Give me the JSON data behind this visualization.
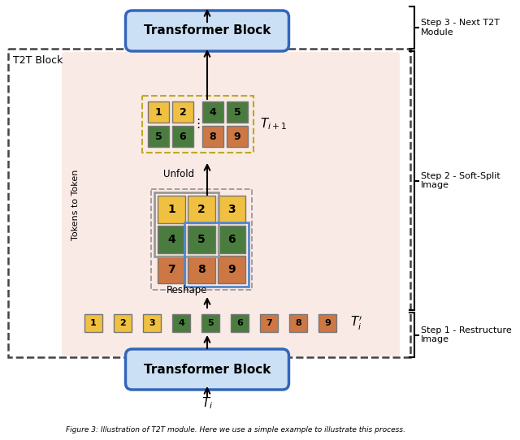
{
  "fig_width": 6.4,
  "fig_height": 5.42,
  "dpi": 100,
  "bg_color": "#ffffff",
  "pink_bg": "#faeae6",
  "yellow": "#f0c040",
  "green": "#4a7c3f",
  "orange": "#cc7744",
  "blue_box": "#5588cc",
  "gray_box": "#999999",
  "tb_fill": "#cce0f5",
  "tb_border": "#3366bb",
  "bottom_seq": [
    {
      "n": "1",
      "c": "#f0c040"
    },
    {
      "n": "2",
      "c": "#f0c040"
    },
    {
      "n": "3",
      "c": "#f0c040"
    },
    {
      "n": "4",
      "c": "#4a7c3f"
    },
    {
      "n": "5",
      "c": "#4a7c3f"
    },
    {
      "n": "6",
      "c": "#4a7c3f"
    },
    {
      "n": "7",
      "c": "#cc7744"
    },
    {
      "n": "8",
      "c": "#cc7744"
    },
    {
      "n": "9",
      "c": "#cc7744"
    }
  ],
  "grid3_colors": [
    [
      "#f0c040",
      "#f0c040",
      "#f0c040"
    ],
    [
      "#4a7c3f",
      "#4a7c3f",
      "#4a7c3f"
    ],
    [
      "#cc7744",
      "#cc7744",
      "#cc7744"
    ]
  ],
  "top_r1_colors": [
    "#f0c040",
    "#f0c040",
    "#4a7c3f",
    "#4a7c3f"
  ],
  "top_r2_colors": [
    "#4a7c3f",
    "#4a7c3f",
    "#cc7744",
    "#cc7744"
  ],
  "top_r1_nums": [
    "1",
    "2",
    "4",
    "5"
  ],
  "top_r2_nums": [
    "5",
    "6",
    "8",
    "9"
  ]
}
